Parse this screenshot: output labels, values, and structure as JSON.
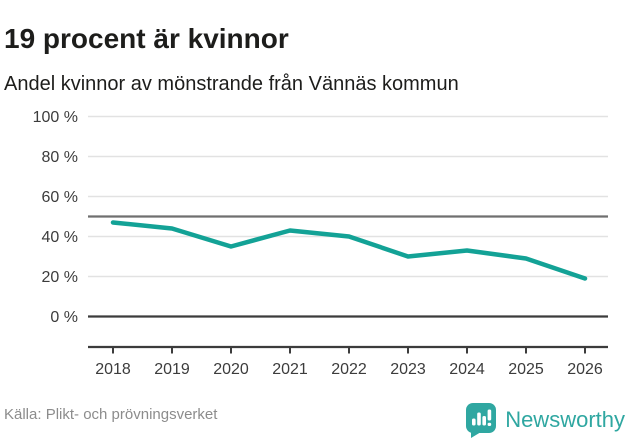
{
  "header": {
    "title": "19 procent är kvinnor",
    "subtitle": "Andel kvinnor av mönstrande från Vännäs kommun"
  },
  "chart_data": {
    "type": "line",
    "title": "19 procent är kvinnor",
    "subtitle": "Andel kvinnor av mönstrande från Vännäs kommun",
    "x": [
      2018,
      2019,
      2020,
      2021,
      2022,
      2023,
      2024,
      2025,
      2026
    ],
    "series": [
      {
        "name": "Andel kvinnor av mönstrande",
        "values": [
          47,
          44,
          35,
          43,
          40,
          30,
          33,
          29,
          19
        ]
      }
    ],
    "ylim": [
      0,
      100
    ],
    "yticks": [
      0,
      20,
      40,
      60,
      80,
      100
    ],
    "ytick_suffix": " %",
    "reference_line": 50,
    "grid": "horizontal",
    "legend": "none",
    "line_color": "#13a296",
    "grid_color": "#e2e2e2",
    "axis_color": "#3c3c3c",
    "reference_color": "#6f6f6f",
    "tick_label_color": "#3c3c3c"
  },
  "footer": {
    "source": "Källa: Plikt- och prövningsverket",
    "brand": "Newsworthy",
    "brand_color": "#2fa7a1",
    "logo_icon": "bar-chart-speech-bubble-icon"
  }
}
